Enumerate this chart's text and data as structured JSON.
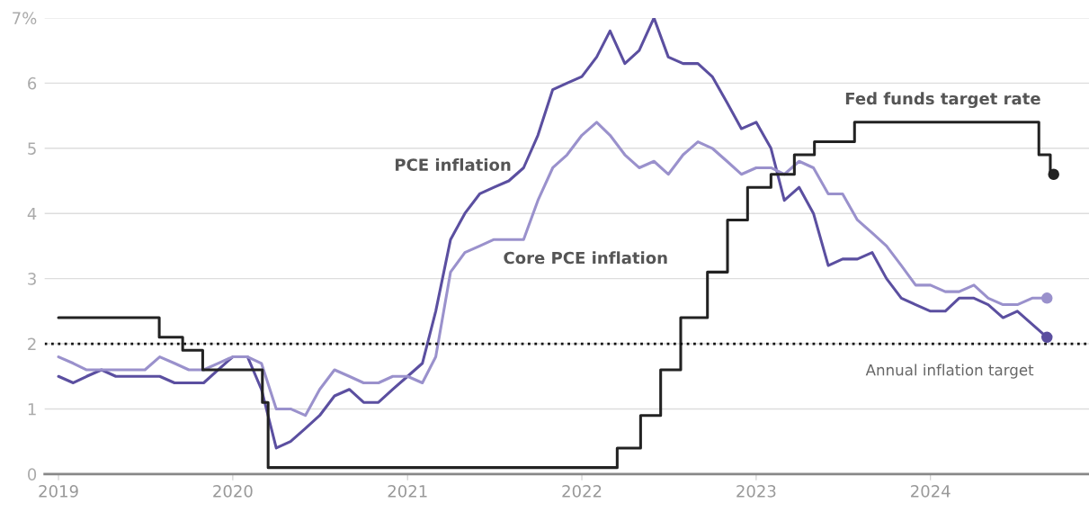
{
  "chart_data": {
    "type": "line",
    "ylim": [
      0,
      7
    ],
    "yticks": [
      0,
      1,
      2,
      3,
      4,
      5,
      6,
      {
        "value": 7,
        "label": "7%"
      }
    ],
    "xlim": [
      "2018-12-03",
      "2024-11-28"
    ],
    "xticks": [
      {
        "value": "2019",
        "label": "2019"
      },
      {
        "value": "2020",
        "label": "2020"
      },
      {
        "value": "2021",
        "label": "2021"
      },
      {
        "value": "2022",
        "label": "2022"
      },
      {
        "value": "2023",
        "label": "2023"
      },
      {
        "value": "2024",
        "label": "2024"
      }
    ],
    "grid": "y",
    "legend": false,
    "line_style": "solid",
    "x": [
      "2019-01",
      "2019-02",
      "2019-03",
      "2019-04",
      "2019-05",
      "2019-06",
      "2019-07",
      "2019-08",
      "2019-09",
      "2019-10",
      "2019-11",
      "2019-12",
      "2020-01",
      "2020-02",
      "2020-03",
      "2020-04",
      "2020-05",
      "2020-06",
      "2020-07",
      "2020-08",
      "2020-09",
      "2020-10",
      "2020-11",
      "2020-12",
      "2021-01",
      "2021-02",
      "2021-03",
      "2021-04",
      "2021-05",
      "2021-06",
      "2021-07",
      "2021-08",
      "2021-09",
      "2021-10",
      "2021-11",
      "2021-12",
      "2022-01",
      "2022-02",
      "2022-03",
      "2022-04",
      "2022-05",
      "2022-06",
      "2022-07",
      "2022-08",
      "2022-09",
      "2022-10",
      "2022-11",
      "2022-12",
      "2023-01",
      "2023-02",
      "2023-03",
      "2023-04",
      "2023-05",
      "2023-06",
      "2023-07",
      "2023-08",
      "2023-09",
      "2023-10",
      "2023-11",
      "2023-12",
      "2024-01",
      "2024-02",
      "2024-03",
      "2024-04",
      "2024-05",
      "2024-06",
      "2024-07",
      "2024-08",
      "2024-09"
    ],
    "series": [
      {
        "name": "PCE inflation",
        "color": "#5b4fa0",
        "values": [
          1.5,
          1.4,
          1.5,
          1.6,
          1.5,
          1.5,
          1.5,
          1.5,
          1.4,
          1.4,
          1.4,
          1.6,
          1.8,
          1.8,
          1.3,
          0.4,
          0.5,
          0.7,
          0.9,
          1.2,
          1.3,
          1.1,
          1.1,
          1.3,
          1.5,
          1.7,
          2.5,
          3.6,
          4.0,
          4.3,
          4.4,
          4.5,
          4.7,
          5.2,
          5.9,
          6.0,
          6.1,
          6.4,
          6.8,
          6.3,
          6.5,
          7.0,
          6.4,
          6.3,
          6.3,
          6.1,
          5.7,
          5.3,
          5.4,
          5.0,
          4.2,
          4.4,
          4.0,
          3.2,
          3.3,
          3.3,
          3.4,
          3.0,
          2.7,
          2.6,
          2.5,
          2.5,
          2.7,
          2.7,
          2.6,
          2.4,
          2.5,
          2.3,
          2.1
        ]
      },
      {
        "name": "Core PCE inflation",
        "color": "#9a91cc",
        "values": [
          1.8,
          1.7,
          1.6,
          1.6,
          1.6,
          1.6,
          1.6,
          1.8,
          1.7,
          1.6,
          1.6,
          1.7,
          1.8,
          1.8,
          1.7,
          1.0,
          1.0,
          0.9,
          1.3,
          1.6,
          1.5,
          1.4,
          1.4,
          1.5,
          1.5,
          1.4,
          1.8,
          3.1,
          3.4,
          3.5,
          3.6,
          3.6,
          3.6,
          4.2,
          4.7,
          4.9,
          5.2,
          5.4,
          5.2,
          4.9,
          4.7,
          4.8,
          4.6,
          4.9,
          5.1,
          5.0,
          4.8,
          4.6,
          4.7,
          4.7,
          4.6,
          4.8,
          4.7,
          4.3,
          4.3,
          3.9,
          3.7,
          3.5,
          3.2,
          2.9,
          2.9,
          2.8,
          2.8,
          2.9,
          2.7,
          2.6,
          2.6,
          2.7,
          2.7
        ]
      },
      {
        "name": "Fed funds target rate",
        "color": "#222222",
        "type": "step",
        "x": [
          "2019-01-01",
          "2019-07-31",
          "2019-09-18",
          "2019-10-30",
          "2020-03-03",
          "2020-03-15",
          "2022-03-16",
          "2022-05-04",
          "2022-06-15",
          "2022-07-27",
          "2022-09-21",
          "2022-11-02",
          "2022-12-14",
          "2023-02-01",
          "2023-03-22",
          "2023-05-03",
          "2023-07-26",
          "2024-08-15",
          "2024-09-08",
          "2024-09-15"
        ],
        "values": [
          2.4,
          2.1,
          1.9,
          1.6,
          1.1,
          0.1,
          0.4,
          0.9,
          1.6,
          2.4,
          3.1,
          3.9,
          4.4,
          4.6,
          4.9,
          5.1,
          5.4,
          4.9,
          4.6,
          4.6
        ]
      }
    ],
    "ref_lines": [
      {
        "axis": "y",
        "value": 2,
        "label": "Annual inflation target",
        "color": "#111111",
        "line_style": "dotted"
      }
    ]
  }
}
